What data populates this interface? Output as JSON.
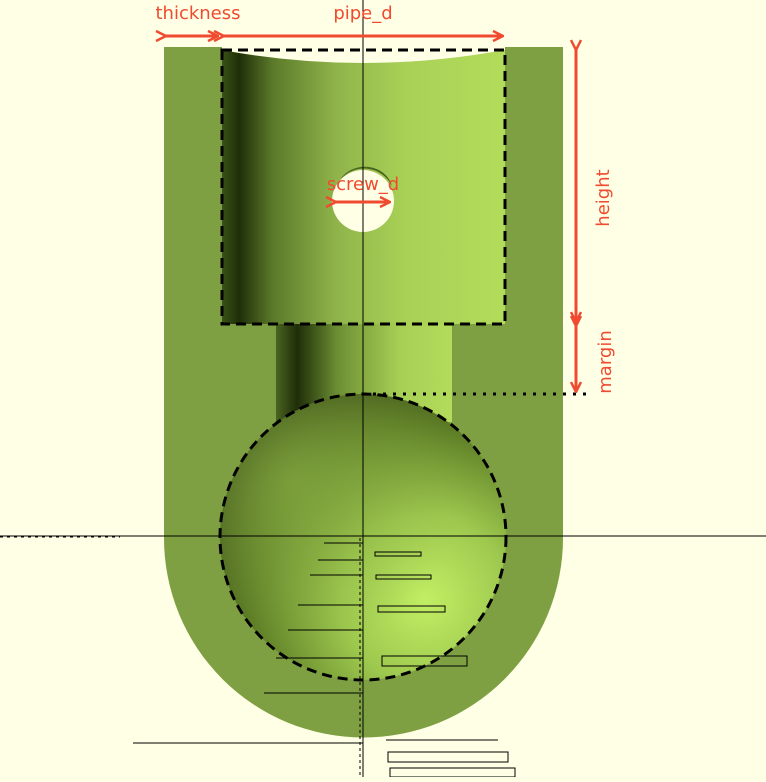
{
  "viewport": {
    "background": "#ffffe5",
    "part_color": "#7ea042",
    "highlight_color": "#b8e55e",
    "shadow_color": "#2f4010",
    "annotation_color": "#f04a30"
  },
  "labels": {
    "thickness": "thickness",
    "pipe_d": "pipe_d",
    "screw_d": "screw_d",
    "height": "height",
    "margin": "margin"
  }
}
